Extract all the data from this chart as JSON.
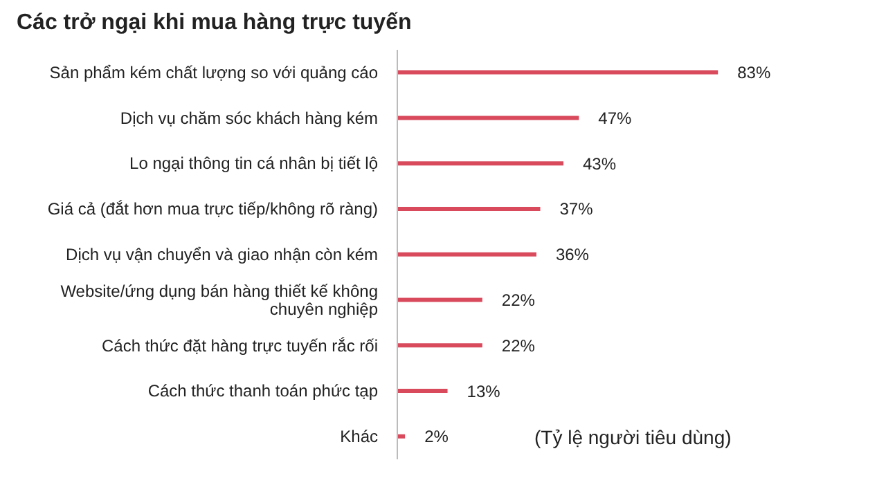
{
  "chart_data": {
    "type": "bar",
    "orientation": "horizontal",
    "title": "Các trở ngại khi mua hàng trực tuyến",
    "categories": [
      "Sản phẩm kém chất lượng so với quảng cáo",
      "Dịch vụ chăm sóc khách hàng kém",
      "Lo ngại thông tin cá nhân bị tiết lộ",
      "Giá cả (đắt hơn mua trực tiếp/không rõ ràng)",
      "Dịch vụ vận chuyển và giao nhận còn kém",
      "Website/ứng dụng bán hàng thiết kế không chuyên nghiệp",
      "Cách thức đặt hàng trực tuyến rắc rối",
      "Cách thức thanh toán phức tạp",
      "Khác"
    ],
    "values": [
      83,
      47,
      43,
      37,
      36,
      22,
      22,
      13,
      2
    ],
    "value_labels": [
      "83%",
      "47%",
      "43%",
      "37%",
      "36%",
      "22%",
      "22%",
      "13%",
      "2%"
    ],
    "color": "#d84a5c",
    "annotations": [
      "(Tỷ lệ người tiêu dùng)"
    ],
    "grid": false,
    "legend": false
  }
}
